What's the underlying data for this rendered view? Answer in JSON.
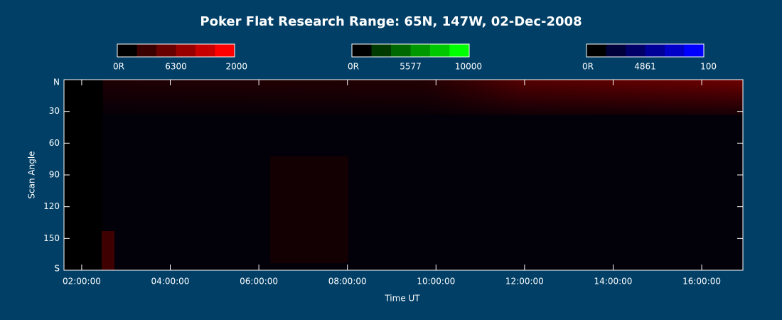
{
  "chart_data": {
    "type": "keogram",
    "title": "Poker Flat Research Range: 65N, 147W, 02-Dec-2008",
    "x_label": "Time UT",
    "y_label": "Scan Angle",
    "xlim": [
      1.6,
      16.93
    ],
    "xticks": [
      {
        "value": 2,
        "label": "02:00:00"
      },
      {
        "value": 4,
        "label": "04:00:00"
      },
      {
        "value": 6,
        "label": "06:00:00"
      },
      {
        "value": 8,
        "label": "08:00:00"
      },
      {
        "value": 10,
        "label": "10:00:00"
      },
      {
        "value": 12,
        "label": "12:00:00"
      },
      {
        "value": 14,
        "label": "14:00:00"
      },
      {
        "value": 16,
        "label": "16:00:00"
      }
    ],
    "ylim": [
      0,
      180
    ],
    "yticks": [
      {
        "value": 0,
        "label": "N"
      },
      30,
      60,
      90,
      120,
      150,
      {
        "value": 180,
        "label": "S"
      }
    ],
    "colorbars": [
      {
        "name": "6300",
        "min_label": "0R",
        "max": 2000,
        "colors": [
          "#000000",
          "#3a0000",
          "#680000",
          "#980000",
          "#c80000",
          "#ff0000"
        ]
      },
      {
        "name": "5577",
        "min_label": "0R",
        "max": 10000,
        "colors": [
          "#000000",
          "#003a00",
          "#006800",
          "#009800",
          "#00c800",
          "#00ff00"
        ]
      },
      {
        "name": "4861",
        "min_label": "0R",
        "max": 100,
        "colors": [
          "#000000",
          "#00003a",
          "#000068",
          "#000098",
          "#0000c8",
          "#0000ff"
        ]
      }
    ]
  }
}
